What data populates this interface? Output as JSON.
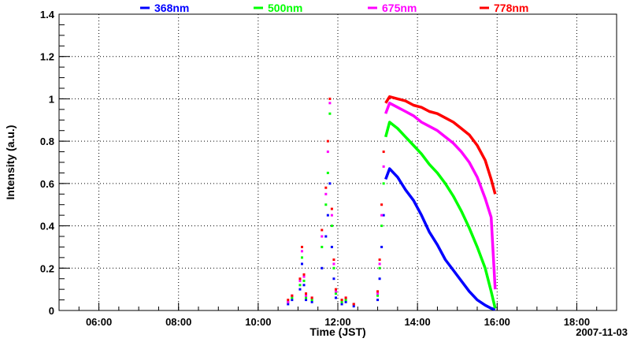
{
  "chart_data": {
    "type": "scatter",
    "title": "",
    "xlabel": "Time (JST)",
    "ylabel": "Intensity (a.u.)",
    "date": "2007-11-03",
    "xlim": [
      5.0,
      19.0
    ],
    "ylim": [
      0,
      1.4
    ],
    "x_ticks": [
      {
        "value": 6,
        "label": "06:00"
      },
      {
        "value": 8,
        "label": "08:00"
      },
      {
        "value": 10,
        "label": "10:00"
      },
      {
        "value": 12,
        "label": "12:00"
      },
      {
        "value": 14,
        "label": "14:00"
      },
      {
        "value": 16,
        "label": "16:00"
      },
      {
        "value": 18,
        "label": "18:00"
      }
    ],
    "y_ticks": [
      {
        "value": 0,
        "label": "0"
      },
      {
        "value": 0.2,
        "label": "0.2"
      },
      {
        "value": 0.4,
        "label": "0.4"
      },
      {
        "value": 0.6,
        "label": "0.6"
      },
      {
        "value": 0.8,
        "label": "0.8"
      },
      {
        "value": 1.0,
        "label": "1"
      },
      {
        "value": 1.2,
        "label": "1.2"
      },
      {
        "value": 1.4,
        "label": "1.4"
      }
    ],
    "grid": true,
    "legend_position": "top",
    "series": [
      {
        "name": "368nm",
        "color": "#0000ff",
        "scattered": [
          [
            10.75,
            0.03
          ],
          [
            10.85,
            0.05
          ],
          [
            11.05,
            0.1
          ],
          [
            11.1,
            0.22
          ],
          [
            11.15,
            0.12
          ],
          [
            11.2,
            0.05
          ],
          [
            11.35,
            0.04
          ],
          [
            11.6,
            0.2
          ],
          [
            11.7,
            0.35
          ],
          [
            11.75,
            0.45
          ],
          [
            11.8,
            0.6
          ],
          [
            11.85,
            0.3
          ],
          [
            11.9,
            0.15
          ],
          [
            11.95,
            0.06
          ],
          [
            12.1,
            0.03
          ],
          [
            12.2,
            0.04
          ],
          [
            12.4,
            0.02
          ],
          [
            13.0,
            0.05
          ],
          [
            13.05,
            0.15
          ],
          [
            13.1,
            0.3
          ],
          [
            13.15,
            0.45
          ]
        ],
        "curve": [
          [
            13.2,
            0.62
          ],
          [
            13.3,
            0.67
          ],
          [
            13.5,
            0.63
          ],
          [
            13.7,
            0.57
          ],
          [
            13.9,
            0.52
          ],
          [
            14.1,
            0.45
          ],
          [
            14.3,
            0.37
          ],
          [
            14.5,
            0.31
          ],
          [
            14.7,
            0.24
          ],
          [
            14.9,
            0.19
          ],
          [
            15.1,
            0.14
          ],
          [
            15.3,
            0.09
          ],
          [
            15.5,
            0.05
          ],
          [
            15.7,
            0.025
          ],
          [
            15.85,
            0.01
          ],
          [
            15.95,
            0.005
          ]
        ]
      },
      {
        "name": "500nm",
        "color": "#00ff00",
        "scattered": [
          [
            10.75,
            0.04
          ],
          [
            10.85,
            0.06
          ],
          [
            11.05,
            0.12
          ],
          [
            11.1,
            0.25
          ],
          [
            11.15,
            0.14
          ],
          [
            11.2,
            0.06
          ],
          [
            11.35,
            0.05
          ],
          [
            11.6,
            0.3
          ],
          [
            11.7,
            0.5
          ],
          [
            11.75,
            0.65
          ],
          [
            11.8,
            0.93
          ],
          [
            11.85,
            0.4
          ],
          [
            11.9,
            0.2
          ],
          [
            11.95,
            0.08
          ],
          [
            12.1,
            0.04
          ],
          [
            12.2,
            0.05
          ],
          [
            12.4,
            0.03
          ],
          [
            13.0,
            0.07
          ],
          [
            13.05,
            0.2
          ],
          [
            13.1,
            0.4
          ],
          [
            13.15,
            0.6
          ]
        ],
        "curve": [
          [
            13.2,
            0.82
          ],
          [
            13.3,
            0.89
          ],
          [
            13.5,
            0.86
          ],
          [
            13.7,
            0.82
          ],
          [
            13.9,
            0.78
          ],
          [
            14.1,
            0.74
          ],
          [
            14.3,
            0.69
          ],
          [
            14.5,
            0.65
          ],
          [
            14.7,
            0.6
          ],
          [
            14.9,
            0.54
          ],
          [
            15.1,
            0.47
          ],
          [
            15.3,
            0.39
          ],
          [
            15.5,
            0.3
          ],
          [
            15.7,
            0.2
          ],
          [
            15.85,
            0.09
          ],
          [
            15.95,
            0.01
          ]
        ]
      },
      {
        "name": "675nm",
        "color": "#ff00ff",
        "scattered": [
          [
            10.75,
            0.04
          ],
          [
            10.85,
            0.07
          ],
          [
            11.05,
            0.14
          ],
          [
            11.1,
            0.28
          ],
          [
            11.15,
            0.16
          ],
          [
            11.2,
            0.07
          ],
          [
            11.35,
            0.06
          ],
          [
            11.6,
            0.35
          ],
          [
            11.7,
            0.55
          ],
          [
            11.75,
            0.75
          ],
          [
            11.8,
            0.98
          ],
          [
            11.85,
            0.45
          ],
          [
            11.9,
            0.22
          ],
          [
            11.95,
            0.09
          ],
          [
            12.1,
            0.05
          ],
          [
            12.2,
            0.06
          ],
          [
            12.4,
            0.03
          ],
          [
            13.0,
            0.08
          ],
          [
            13.05,
            0.22
          ],
          [
            13.1,
            0.45
          ],
          [
            13.15,
            0.68
          ]
        ],
        "curve": [
          [
            13.2,
            0.93
          ],
          [
            13.3,
            0.98
          ],
          [
            13.5,
            0.96
          ],
          [
            13.7,
            0.94
          ],
          [
            13.9,
            0.92
          ],
          [
            14.1,
            0.89
          ],
          [
            14.3,
            0.87
          ],
          [
            14.5,
            0.85
          ],
          [
            14.7,
            0.82
          ],
          [
            14.9,
            0.79
          ],
          [
            15.1,
            0.75
          ],
          [
            15.3,
            0.7
          ],
          [
            15.5,
            0.63
          ],
          [
            15.7,
            0.53
          ],
          [
            15.85,
            0.44
          ],
          [
            15.95,
            0.1
          ]
        ]
      },
      {
        "name": "778nm",
        "color": "#ff0000",
        "scattered": [
          [
            10.75,
            0.05
          ],
          [
            10.85,
            0.07
          ],
          [
            11.05,
            0.15
          ],
          [
            11.1,
            0.3
          ],
          [
            11.15,
            0.17
          ],
          [
            11.2,
            0.08
          ],
          [
            11.35,
            0.06
          ],
          [
            11.6,
            0.38
          ],
          [
            11.7,
            0.58
          ],
          [
            11.75,
            0.8
          ],
          [
            11.8,
            1.0
          ],
          [
            11.85,
            0.48
          ],
          [
            11.9,
            0.24
          ],
          [
            11.95,
            0.1
          ],
          [
            12.1,
            0.05
          ],
          [
            12.2,
            0.06
          ],
          [
            12.4,
            0.03
          ],
          [
            13.0,
            0.09
          ],
          [
            13.05,
            0.24
          ],
          [
            13.1,
            0.5
          ],
          [
            13.15,
            0.75
          ]
        ],
        "curve": [
          [
            13.2,
            0.98
          ],
          [
            13.3,
            1.01
          ],
          [
            13.5,
            1.0
          ],
          [
            13.7,
            0.99
          ],
          [
            13.9,
            0.97
          ],
          [
            14.1,
            0.96
          ],
          [
            14.3,
            0.94
          ],
          [
            14.5,
            0.93
          ],
          [
            14.7,
            0.91
          ],
          [
            14.9,
            0.89
          ],
          [
            15.1,
            0.86
          ],
          [
            15.3,
            0.83
          ],
          [
            15.5,
            0.78
          ],
          [
            15.7,
            0.71
          ],
          [
            15.85,
            0.62
          ],
          [
            15.95,
            0.55
          ]
        ]
      }
    ]
  }
}
